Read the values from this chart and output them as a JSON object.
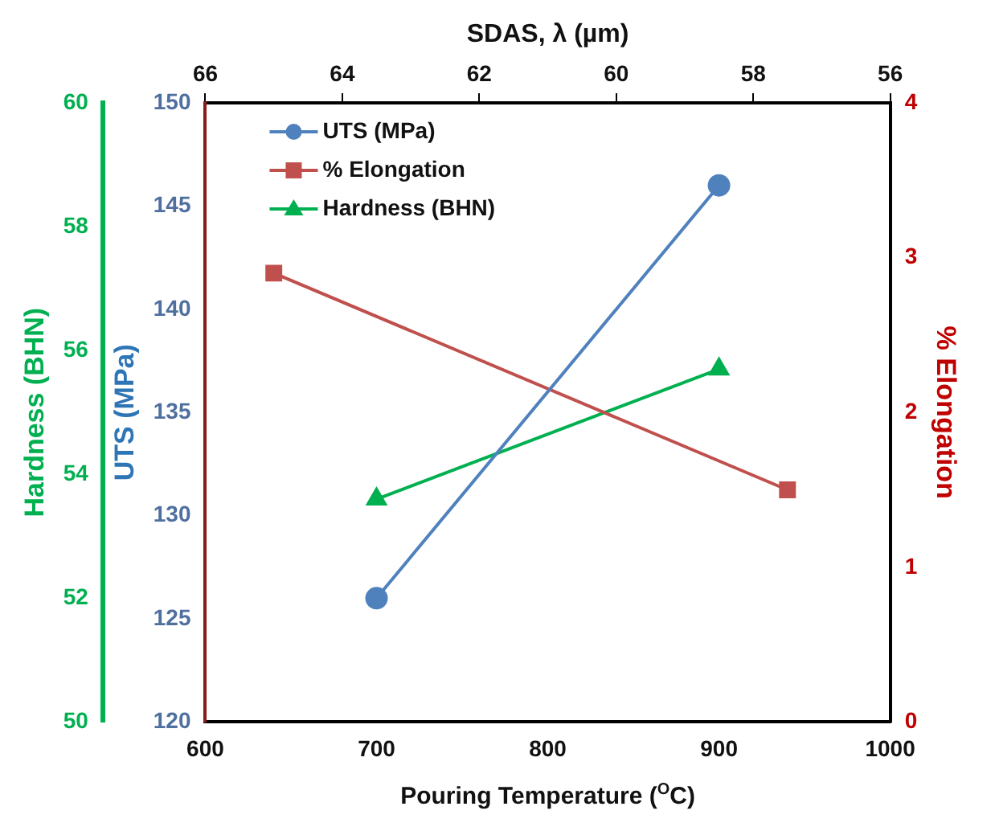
{
  "chart_data": {
    "type": "line",
    "xlabel": "Pouring Temperature ($^{O}$C)",
    "x2label": "SDAS, λ (µm)",
    "ylabel": "UTS (MPa)",
    "y2label": "% Elongation",
    "y3label": "Hardness (BHN)",
    "xlim": [
      600,
      1000
    ],
    "xticks": [
      600,
      700,
      800,
      900,
      1000
    ],
    "x2lim": [
      66,
      56
    ],
    "x2ticks": [
      66,
      64,
      62,
      60,
      58,
      56
    ],
    "ylim": [
      120,
      150
    ],
    "yticks": [
      120,
      125,
      130,
      135,
      140,
      145,
      150
    ],
    "y2lim": [
      0,
      4
    ],
    "y2ticks": [
      0,
      1,
      2,
      3,
      4
    ],
    "y3lim": [
      50,
      60
    ],
    "y3ticks": [
      50,
      52,
      54,
      56,
      58,
      60
    ],
    "grid": false,
    "legend": "top left",
    "line_style": "solid",
    "series": [
      {
        "name": "UTS (MPa)",
        "color": "#4f81bd",
        "x": [
          700,
          900
        ],
        "values": [
          126,
          146
        ],
        "axis": "y",
        "marker": "circle"
      },
      {
        "name": "% Elongation",
        "color": "#c0504d",
        "x": [
          640,
          940
        ],
        "values": [
          2.9,
          1.5
        ],
        "axis": "y2",
        "marker": "square"
      },
      {
        "name": "Hardness (BHN)",
        "color": "#00b050",
        "x": [
          700,
          900
        ],
        "values": [
          53.6,
          55.7
        ],
        "axis": "y3",
        "marker": "triangle"
      }
    ]
  }
}
